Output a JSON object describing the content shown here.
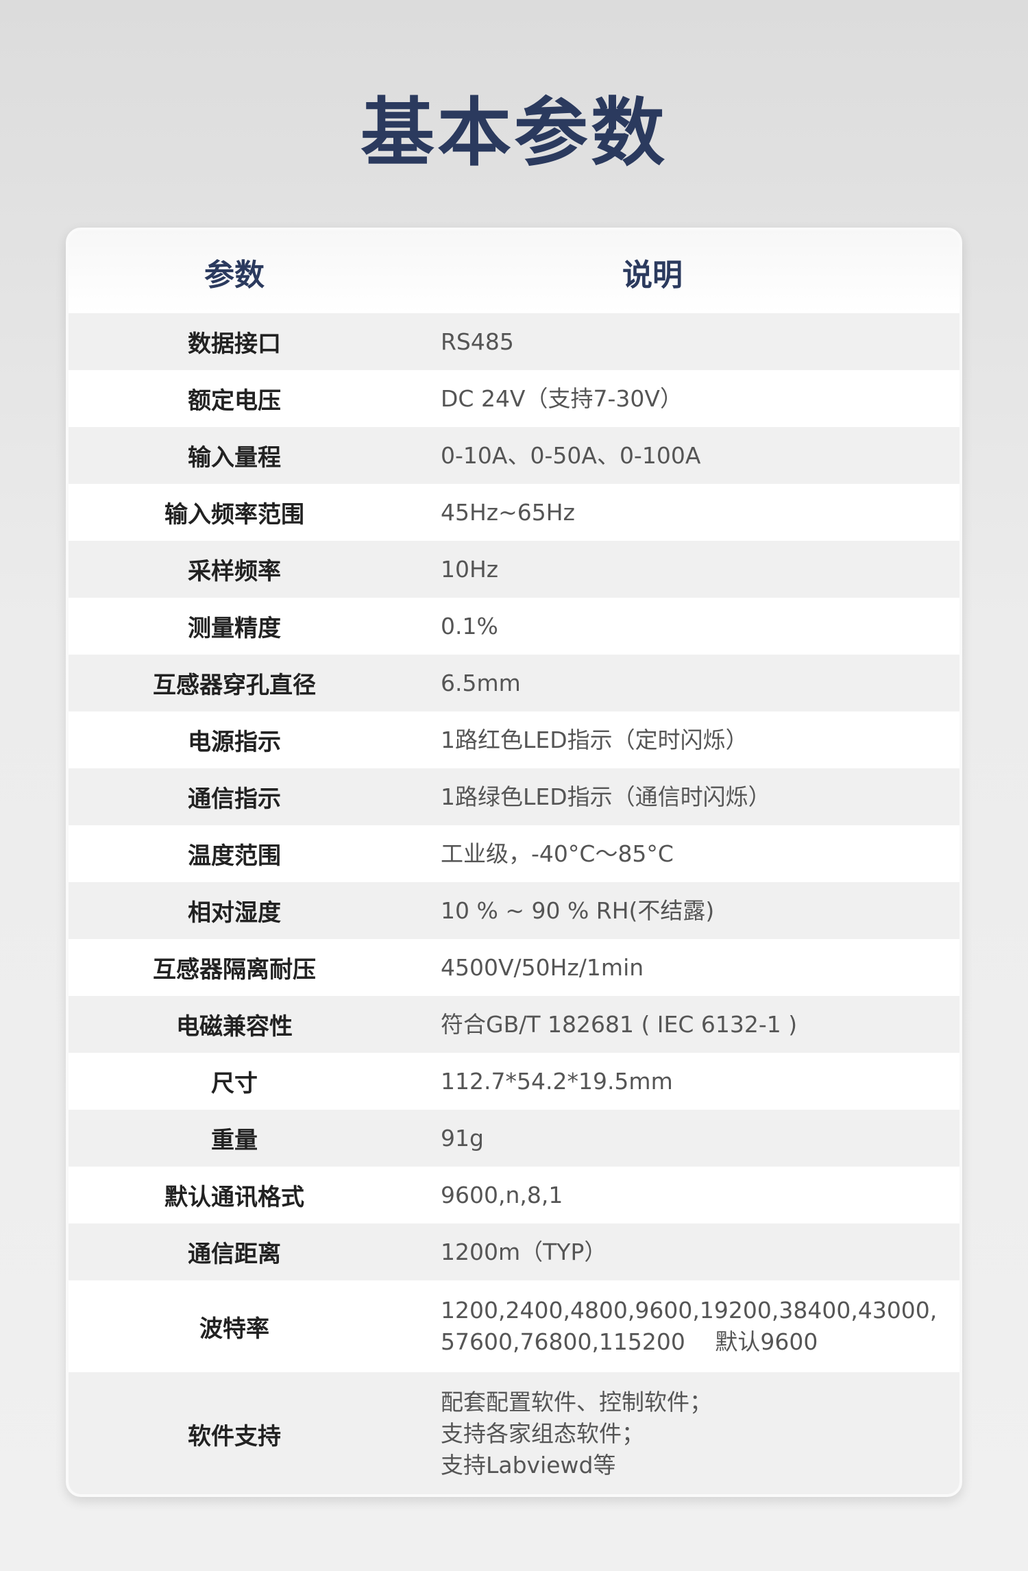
{
  "title": "基本参数",
  "table": {
    "headers": [
      "参数",
      "说明"
    ],
    "rows": [
      {
        "key": "数据接口",
        "value": "RS485"
      },
      {
        "key": "额定电压",
        "value": "DC 24V（支持7-30V）"
      },
      {
        "key": "输入量程",
        "value": "0-10A、0-50A、0-100A"
      },
      {
        "key": "输入频率范围",
        "value": "45Hz~65Hz"
      },
      {
        "key": "采样频率",
        "value": "10Hz"
      },
      {
        "key": "测量精度",
        "value": "0.1%"
      },
      {
        "key": "互感器穿孔直径",
        "value": "6.5mm"
      },
      {
        "key": "电源指示",
        "value": "1路红色LED指示（定时闪烁）"
      },
      {
        "key": "通信指示",
        "value": "1路绿色LED指示（通信时闪烁）"
      },
      {
        "key": "温度范围",
        "value": "工业级，-40°C～85°C"
      },
      {
        "key": "相对湿度",
        "value": "10 % ~ 90 % RH(不结露)"
      },
      {
        "key": "互感器隔离耐压",
        "value": "4500V/50Hz/1min"
      },
      {
        "key": "电磁兼容性",
        "value": "符合GB/T 182681 ( IEC 6132-1 )"
      },
      {
        "key": "尺寸",
        "value": "112.7*54.2*19.5mm"
      },
      {
        "key": "重量",
        "value": "91g"
      },
      {
        "key": "默认通讯格式",
        "value": "9600,n,8,1"
      },
      {
        "key": "通信距离",
        "value": "1200m（TYP）"
      },
      {
        "key": "波特率",
        "value": "1200,2400,4800,9600,19200,38400,43000,\n57600,76800,115200　 默认9600"
      },
      {
        "key": "软件支持",
        "value": "配套配置软件、控制软件；\n支持各家组态软件；\n支持Labviewd等"
      }
    ]
  }
}
